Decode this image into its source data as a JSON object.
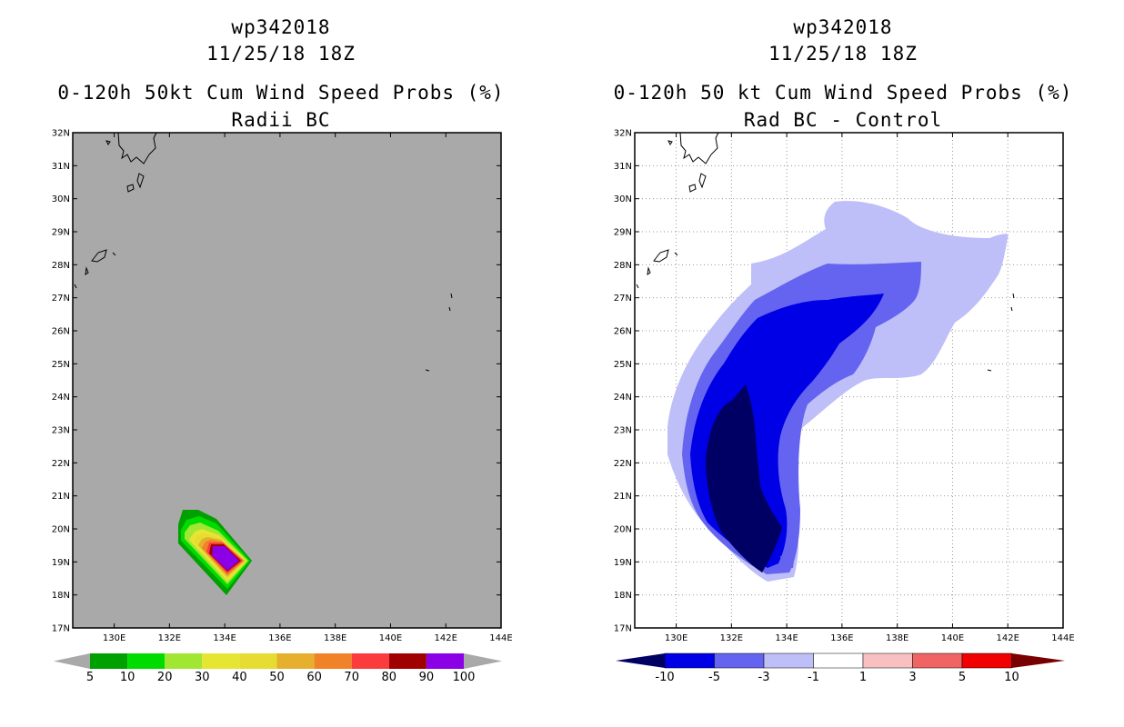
{
  "chart_data": [
    {
      "type": "contour-map",
      "storm_id": "wp342018",
      "valid_time": "11/25/18 18Z",
      "title": "0-120h 50kt Cum Wind Speed Probs (%)",
      "subtitle": "Radii BC",
      "lon_range": [
        128.5,
        144
      ],
      "lat_range": [
        17,
        32
      ],
      "lon_ticks": [
        "130E",
        "132E",
        "134E",
        "136E",
        "138E",
        "140E",
        "142E",
        "144E"
      ],
      "lat_ticks": [
        "17N",
        "18N",
        "19N",
        "20N",
        "21N",
        "22N",
        "23N",
        "24N",
        "25N",
        "26N",
        "27N",
        "28N",
        "29N",
        "30N",
        "31N",
        "32N"
      ],
      "background_color": "#a9a9a9",
      "colorbar": {
        "labels": [
          "5",
          "10",
          "20",
          "30",
          "40",
          "50",
          "60",
          "70",
          "80",
          "90",
          "100"
        ],
        "colors": [
          "#00a000",
          "#00dc00",
          "#a0e632",
          "#e6e632",
          "#e6dc32",
          "#e6af2d",
          "#f08228",
          "#fa3c3c",
          "#a00000",
          "#8c00e6"
        ]
      }
    },
    {
      "type": "contour-map",
      "storm_id": "wp342018",
      "valid_time": "11/25/18 18Z",
      "title": "0-120h 50 kt Cum Wind Speed Probs (%)",
      "subtitle": "Rad BC - Control",
      "lon_range": [
        128.5,
        144
      ],
      "lat_range": [
        17,
        32
      ],
      "lon_ticks": [
        "130E",
        "132E",
        "134E",
        "136E",
        "138E",
        "140E",
        "142E",
        "144E"
      ],
      "lat_ticks": [
        "17N",
        "18N",
        "19N",
        "20N",
        "21N",
        "22N",
        "23N",
        "24N",
        "25N",
        "26N",
        "27N",
        "28N",
        "29N",
        "30N",
        "31N",
        "32N"
      ],
      "gridlines": true,
      "colorbar": {
        "labels": [
          "-10",
          "-5",
          "-3",
          "-1",
          "1",
          "3",
          "5",
          "10"
        ],
        "colors": [
          "#000064",
          "#0000e6",
          "#6464f0",
          "#bebef8",
          "#ffffff",
          "#f8c0c0",
          "#f06464",
          "#f00000",
          "#780000"
        ]
      }
    }
  ]
}
